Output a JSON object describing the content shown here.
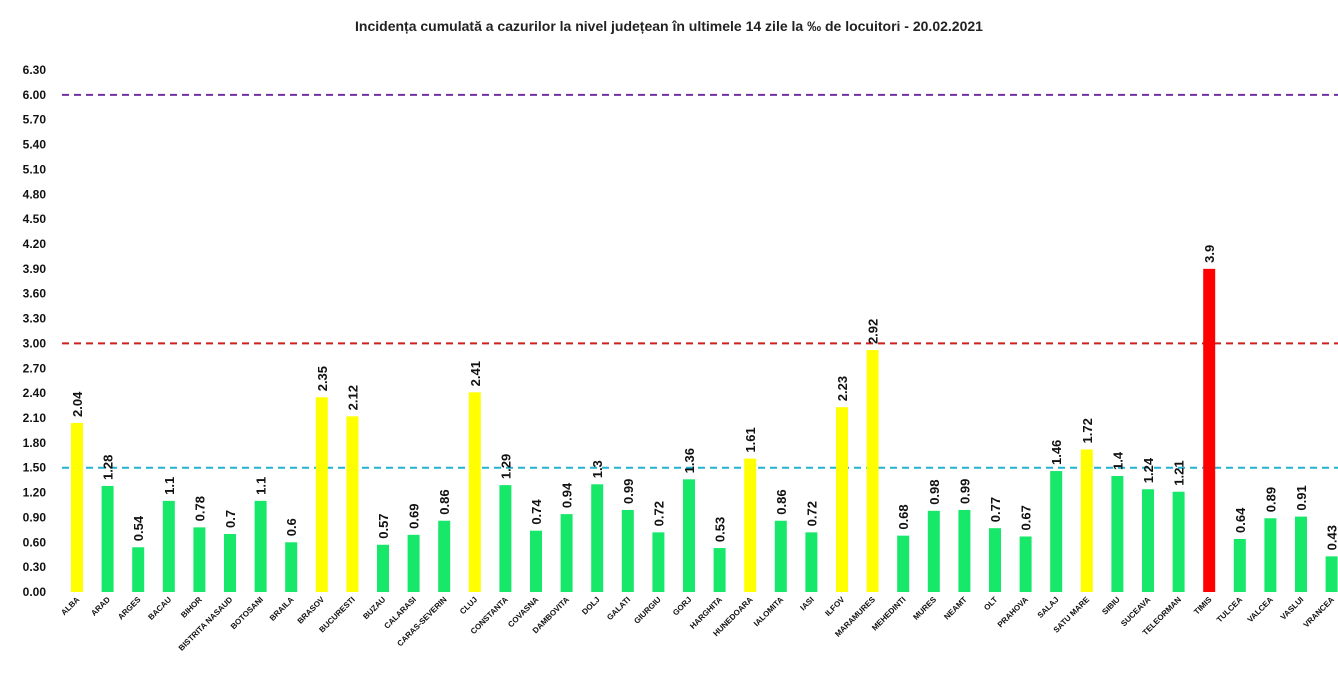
{
  "chart_data": {
    "type": "bar",
    "title": "Incidența cumulată a cazurilor la nivel județean în ultimele 14 zile la ‰ de locuitori - 20.02.2021",
    "xlabel": "",
    "ylabel": "",
    "ylim": [
      0,
      6.3
    ],
    "yticks": [
      "0.00",
      "0.30",
      "0.60",
      "0.90",
      "1.20",
      "1.50",
      "1.80",
      "2.10",
      "2.40",
      "2.70",
      "3.00",
      "3.30",
      "3.60",
      "3.90",
      "4.20",
      "4.50",
      "4.80",
      "5.10",
      "5.40",
      "5.70",
      "6.00",
      "6.30"
    ],
    "grid": false,
    "legend": "none",
    "categories": [
      "ALBA",
      "ARAD",
      "ARGES",
      "BACAU",
      "BIHOR",
      "BISTRITA NASAUD",
      "BOTOSANI",
      "BRAILA",
      "BRASOV",
      "BUCURESTI",
      "BUZAU",
      "CALARASI",
      "CARAS-SEVERIN",
      "CLUJ",
      "CONSTANTA",
      "COVASNA",
      "DAMBOVITA",
      "DOLJ",
      "GALATI",
      "GIURGIU",
      "GORJ",
      "HARGHITA",
      "HUNEDOARA",
      "IALOMITA",
      "IASI",
      "ILFOV",
      "MARAMURES",
      "MEHEDINTI",
      "MURES",
      "NEAMT",
      "OLT",
      "PRAHOVA",
      "SALAJ",
      "SATU MARE",
      "SIBIU",
      "SUCEAVA",
      "TELEORMAN",
      "TIMIS",
      "TULCEA",
      "VALCEA",
      "VASLUI",
      "VRANCEA"
    ],
    "values": [
      2.04,
      1.28,
      0.54,
      1.1,
      0.78,
      0.7,
      1.1,
      0.6,
      2.35,
      2.12,
      0.57,
      0.69,
      0.86,
      2.41,
      1.29,
      0.74,
      0.94,
      1.3,
      0.99,
      0.72,
      1.36,
      0.53,
      1.61,
      0.86,
      0.72,
      2.23,
      2.92,
      0.68,
      0.98,
      0.99,
      0.77,
      0.67,
      1.46,
      1.72,
      1.4,
      1.24,
      1.21,
      3.9,
      0.64,
      0.89,
      0.91,
      0.43
    ],
    "value_labels": [
      "2.04",
      "1.28",
      "0.54",
      "1.1",
      "0.78",
      "0.7",
      "1.1",
      "0.6",
      "2.35",
      "2.12",
      "0.57",
      "0.69",
      "0.86",
      "2.41",
      "1.29",
      "0.74",
      "0.94",
      "1.3",
      "0.99",
      "0.72",
      "1.36",
      "0.53",
      "1.61",
      "0.86",
      "0.72",
      "2.23",
      "2.92",
      "0.68",
      "0.98",
      "0.99",
      "0.77",
      "0.67",
      "1.46",
      "1.72",
      "1.4",
      "1.24",
      "1.21",
      "3.9",
      "0.64",
      "0.89",
      "0.91",
      "0.43"
    ],
    "bar_colors": {
      "green": "#17e86a",
      "yellow": "#ffff00",
      "red": "#ff0000"
    },
    "thresholds": [
      {
        "value": 1.5,
        "color": "#21b3d0"
      },
      {
        "value": 3.0,
        "color": "#d01f1f"
      },
      {
        "value": 6.0,
        "color": "#7030a0"
      }
    ]
  }
}
